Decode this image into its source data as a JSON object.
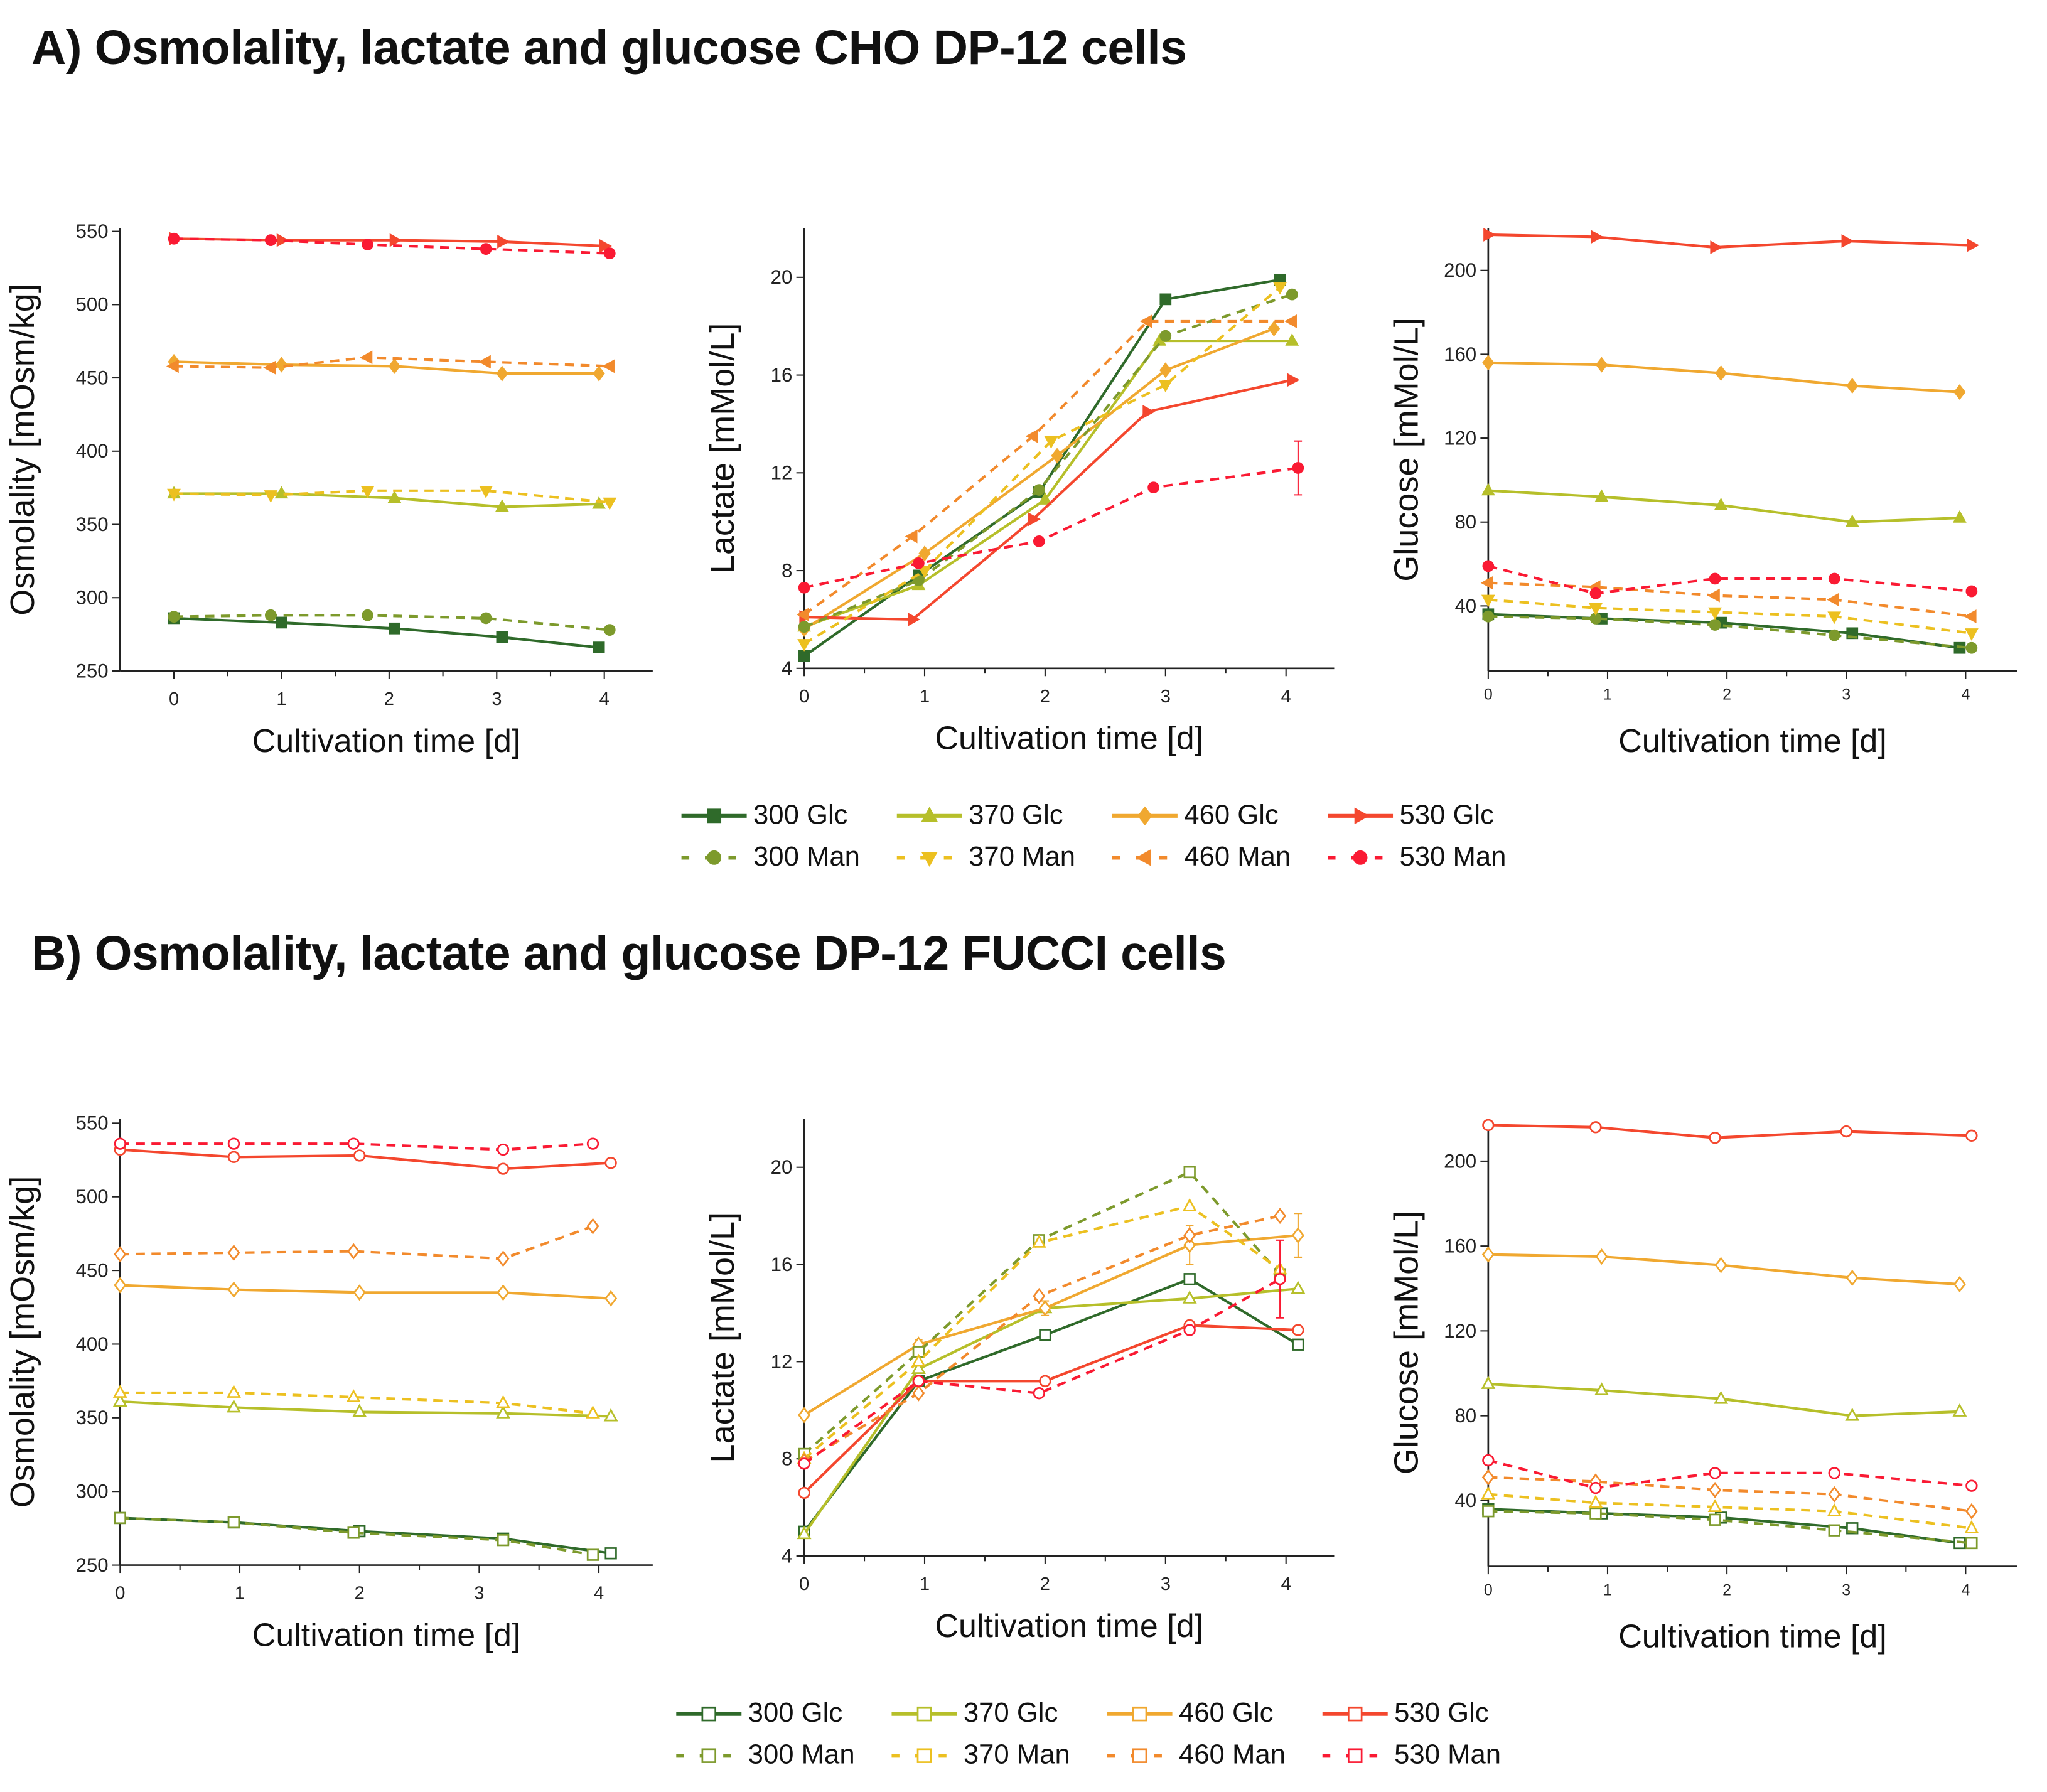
{
  "panel_a_title": "A) Osmolality, lactate and glucose CHO DP-12 cells",
  "panel_b_title": "B) Osmolality, lactate and glucose DP-12 FUCCI  cells",
  "legend_a": [
    {
      "label": "300 Glc",
      "color": "#2f6a2a",
      "dash": false,
      "marker": "square",
      "filled": true
    },
    {
      "label": "370 Glc",
      "color": "#b6bf2a",
      "dash": false,
      "marker": "triangle-up",
      "filled": true
    },
    {
      "label": "460 Glc",
      "color": "#f0a830",
      "dash": false,
      "marker": "diamond",
      "filled": true
    },
    {
      "label": "530 Glc",
      "color": "#f4472e",
      "dash": false,
      "marker": "triangle-right",
      "filled": true
    },
    {
      "label": "300 Man",
      "color": "#7d9a2c",
      "dash": true,
      "marker": "circle",
      "filled": true
    },
    {
      "label": "370 Man",
      "color": "#ecc020",
      "dash": true,
      "marker": "triangle-down",
      "filled": true
    },
    {
      "label": "460 Man",
      "color": "#f28a2c",
      "dash": true,
      "marker": "triangle-left",
      "filled": true
    },
    {
      "label": "530 Man",
      "color": "#fa1a33",
      "dash": true,
      "marker": "circle",
      "filled": true
    }
  ],
  "legend_b": [
    {
      "label": "300 Glc",
      "color": "#2f6a2a",
      "dash": false,
      "marker": "square",
      "filled": false
    },
    {
      "label": "370 Glc",
      "color": "#b6bf2a",
      "dash": false,
      "marker": "square",
      "filled": false
    },
    {
      "label": "460 Glc",
      "color": "#f0a830",
      "dash": false,
      "marker": "square",
      "filled": false
    },
    {
      "label": "530 Glc",
      "color": "#f4472e",
      "dash": false,
      "marker": "square",
      "filled": false
    },
    {
      "label": "300 Man",
      "color": "#7d9a2c",
      "dash": true,
      "marker": "square",
      "filled": false
    },
    {
      "label": "370 Man",
      "color": "#ecc020",
      "dash": true,
      "marker": "square",
      "filled": false
    },
    {
      "label": "460 Man",
      "color": "#f28a2c",
      "dash": true,
      "marker": "square",
      "filled": false
    },
    {
      "label": "530 Man",
      "color": "#fa1a33",
      "dash": true,
      "marker": "square",
      "filled": false
    }
  ],
  "chart_data": [
    {
      "type": "line",
      "panel": "A",
      "xlabel": "Cultivation time [d]",
      "ylabel": "Osmolality [mOsm/kg]",
      "xlim": [
        -0.5,
        4.45
      ],
      "ylim": [
        250,
        552
      ],
      "xticks": [
        0,
        1,
        2,
        3,
        4
      ],
      "yticks": [
        250,
        300,
        350,
        400,
        450,
        500,
        550
      ],
      "grid": false,
      "series": [
        {
          "name": "300 Glc",
          "x": [
            0,
            1,
            2.05,
            3.05,
            3.95
          ],
          "y": [
            286,
            283,
            279,
            273,
            266
          ]
        },
        {
          "name": "370 Glc",
          "x": [
            0,
            1,
            2.05,
            3.05,
            3.95
          ],
          "y": [
            371,
            371,
            368,
            362,
            364
          ]
        },
        {
          "name": "460 Glc",
          "x": [
            0,
            1,
            2.05,
            3.05,
            3.95
          ],
          "y": [
            461,
            459,
            458,
            453,
            453
          ]
        },
        {
          "name": "530 Glc",
          "x": [
            0,
            1,
            2.05,
            3.05,
            4.0
          ],
          "y": [
            545,
            544,
            544,
            543,
            540
          ]
        },
        {
          "name": "300 Man",
          "x": [
            0,
            0.9,
            1.8,
            2.9,
            4.05
          ],
          "y": [
            287,
            288,
            288,
            286,
            278
          ]
        },
        {
          "name": "370 Man",
          "x": [
            0,
            0.9,
            1.8,
            2.9,
            4.05
          ],
          "y": [
            371,
            370,
            373,
            373,
            365
          ]
        },
        {
          "name": "460 Man",
          "x": [
            0,
            0.9,
            1.8,
            2.9,
            4.05
          ],
          "y": [
            458,
            457,
            464,
            461,
            458
          ]
        },
        {
          "name": "530 Man",
          "x": [
            0,
            0.9,
            1.8,
            2.9,
            4.05
          ],
          "y": [
            545,
            544,
            541,
            538,
            535
          ]
        }
      ]
    },
    {
      "type": "line",
      "panel": "A",
      "xlabel": "Cultivation time [d]",
      "ylabel": "Lactate [mMol/L]",
      "xlim": [
        0,
        4.4
      ],
      "ylim": [
        4,
        22
      ],
      "xticks": [
        0,
        1,
        2,
        3,
        4
      ],
      "yticks": [
        4,
        8,
        12,
        16,
        20
      ],
      "grid": false,
      "series": [
        {
          "name": "300 Glc",
          "x": [
            0,
            0.95,
            1.95,
            3.0,
            3.95
          ],
          "y": [
            4.5,
            7.8,
            11.2,
            19.1,
            19.9
          ]
        },
        {
          "name": "370 Glc",
          "x": [
            0,
            0.95,
            2.0,
            2.95,
            4.05
          ],
          "y": [
            5.7,
            7.4,
            10.9,
            17.4,
            17.4
          ]
        },
        {
          "name": "460 Glc",
          "x": [
            0,
            1.0,
            2.1,
            3.0,
            3.9
          ],
          "y": [
            5.6,
            8.7,
            12.7,
            16.2,
            17.9
          ]
        },
        {
          "name": "530 Glc",
          "x": [
            0,
            0.9,
            1.9,
            2.85,
            4.05
          ],
          "y": [
            6.1,
            6.0,
            10.1,
            14.5,
            15.8
          ]
        },
        {
          "name": "300 Man",
          "x": [
            0,
            0.95,
            1.95,
            3.0,
            4.05
          ],
          "y": [
            5.7,
            7.6,
            11.3,
            17.6,
            19.3
          ]
        },
        {
          "name": "370 Man",
          "x": [
            0,
            1.0,
            2.05,
            3.0,
            3.95
          ],
          "y": [
            5.0,
            8.0,
            13.3,
            15.6,
            19.6
          ]
        },
        {
          "name": "460 Man",
          "x": [
            0,
            0.9,
            1.9,
            2.85,
            4.05
          ],
          "y": [
            6.2,
            9.4,
            13.5,
            18.2,
            18.2
          ]
        },
        {
          "name": "530 Man",
          "x": [
            0,
            0.95,
            1.95,
            2.9,
            4.1
          ],
          "y": [
            7.3,
            8.3,
            9.2,
            11.4,
            12.2
          ],
          "err": [
            0,
            0,
            0,
            0,
            1.1
          ]
        }
      ]
    },
    {
      "type": "line",
      "panel": "A",
      "xlabel": "Cultivation time [d]",
      "ylabel": "Glucose [mMol/L]",
      "xlim": [
        0,
        4.43
      ],
      "ylim": [
        9,
        220
      ],
      "xticks": [
        0,
        1,
        2,
        3,
        4
      ],
      "yticks": [
        40,
        80,
        120,
        160,
        200
      ],
      "grid": false,
      "series": [
        {
          "name": "300 Glc",
          "x": [
            0,
            0.95,
            1.95,
            3.05,
            3.95
          ],
          "y": [
            36,
            34,
            32,
            27,
            20
          ]
        },
        {
          "name": "370 Glc",
          "x": [
            0,
            0.95,
            1.95,
            3.05,
            3.95
          ],
          "y": [
            95,
            92,
            88,
            80,
            82
          ]
        },
        {
          "name": "460 Glc",
          "x": [
            0,
            0.95,
            1.95,
            3.05,
            3.95
          ],
          "y": [
            156,
            155,
            151,
            145,
            142
          ]
        },
        {
          "name": "530 Glc",
          "x": [
            0,
            0.9,
            1.9,
            3.0,
            4.05
          ],
          "y": [
            217,
            216,
            211,
            214,
            212
          ]
        },
        {
          "name": "300 Man",
          "x": [
            0,
            0.9,
            1.9,
            2.9,
            4.05
          ],
          "y": [
            35,
            34,
            31,
            26,
            20
          ]
        },
        {
          "name": "370 Man",
          "x": [
            0,
            0.9,
            1.9,
            2.9,
            4.05
          ],
          "y": [
            43,
            39,
            37,
            35,
            27
          ]
        },
        {
          "name": "460 Man",
          "x": [
            0,
            0.9,
            1.9,
            2.9,
            4.05
          ],
          "y": [
            51,
            49,
            45,
            43,
            35
          ]
        },
        {
          "name": "530 Man",
          "x": [
            0,
            0.9,
            1.9,
            2.9,
            4.05
          ],
          "y": [
            59,
            46,
            53,
            53,
            47
          ]
        }
      ]
    },
    {
      "type": "line",
      "panel": "B",
      "xlabel": "Cultivation time [d]",
      "ylabel": "Osmolality [mOsm/kg]",
      "xlim": [
        0,
        4.45
      ],
      "ylim": [
        250,
        553
      ],
      "xticks": [
        0,
        1,
        2,
        3,
        4
      ],
      "yticks": [
        250,
        300,
        350,
        400,
        450,
        500,
        550
      ],
      "grid": false,
      "series": [
        {
          "name": "300 Glc",
          "x": [
            0,
            0.95,
            2.0,
            3.2,
            4.1
          ],
          "y": [
            282,
            279,
            273,
            268,
            258
          ]
        },
        {
          "name": "370 Glc",
          "x": [
            0,
            0.95,
            2.0,
            3.2,
            4.1
          ],
          "y": [
            361,
            357,
            354,
            353,
            351
          ]
        },
        {
          "name": "460 Glc",
          "x": [
            0,
            0.95,
            2.0,
            3.2,
            4.1
          ],
          "y": [
            440,
            437,
            435,
            435,
            431
          ]
        },
        {
          "name": "530 Glc",
          "x": [
            0,
            0.95,
            2.0,
            3.2,
            4.1
          ],
          "y": [
            532,
            527,
            528,
            519,
            523
          ]
        },
        {
          "name": "300 Man",
          "x": [
            0,
            0.95,
            1.95,
            3.2,
            3.95
          ],
          "y": [
            282,
            279,
            272,
            267,
            257
          ]
        },
        {
          "name": "370 Man",
          "x": [
            0,
            0.95,
            1.95,
            3.2,
            3.95
          ],
          "y": [
            367,
            367,
            364,
            360,
            353
          ]
        },
        {
          "name": "460 Man",
          "x": [
            0,
            0.95,
            1.95,
            3.2,
            3.95
          ],
          "y": [
            461,
            462,
            463,
            458,
            480
          ]
        },
        {
          "name": "530 Man",
          "x": [
            0,
            0.95,
            1.95,
            3.2,
            3.95
          ],
          "y": [
            536,
            536,
            536,
            532,
            536
          ]
        }
      ]
    },
    {
      "type": "line",
      "panel": "B",
      "xlabel": "Cultivation time [d]",
      "ylabel": "Lactate [mMol/L]",
      "xlim": [
        0,
        4.4
      ],
      "ylim": [
        4,
        22
      ],
      "xticks": [
        0,
        1,
        2,
        3,
        4
      ],
      "yticks": [
        4,
        8,
        12,
        16,
        20
      ],
      "grid": false,
      "series": [
        {
          "name": "300 Glc",
          "x": [
            0,
            0.95,
            2.0,
            3.2,
            4.1
          ],
          "y": [
            5.0,
            11.2,
            13.1,
            15.4,
            12.7
          ]
        },
        {
          "name": "370 Glc",
          "x": [
            0,
            0.95,
            2.0,
            3.2,
            4.1
          ],
          "y": [
            4.9,
            11.7,
            14.2,
            14.6,
            15.0
          ]
        },
        {
          "name": "460 Glc",
          "x": [
            0,
            0.95,
            2.0,
            3.2,
            4.1
          ],
          "y": [
            9.8,
            12.7,
            14.2,
            16.8,
            17.2
          ],
          "err": [
            0,
            0.2,
            0.3,
            0.8,
            0.9
          ]
        },
        {
          "name": "530 Glc",
          "x": [
            0,
            0.95,
            2.0,
            3.2,
            4.1
          ],
          "y": [
            6.6,
            11.2,
            11.2,
            13.5,
            13.3
          ]
        },
        {
          "name": "300 Man",
          "x": [
            0,
            0.95,
            1.95,
            3.2,
            3.95
          ],
          "y": [
            8.2,
            12.4,
            17.0,
            19.8,
            15.6
          ]
        },
        {
          "name": "370 Man",
          "x": [
            0,
            0.95,
            1.95,
            3.2,
            3.95
          ],
          "y": [
            8.0,
            12.0,
            16.9,
            18.4,
            15.8
          ]
        },
        {
          "name": "460 Man",
          "x": [
            0,
            0.95,
            1.95,
            3.2,
            3.95
          ],
          "y": [
            7.9,
            10.7,
            14.7,
            17.2,
            18.0
          ]
        },
        {
          "name": "530 Man",
          "x": [
            0,
            0.95,
            1.95,
            3.2,
            3.95
          ],
          "y": [
            7.8,
            11.2,
            10.7,
            13.3,
            15.4
          ],
          "err": [
            0,
            0,
            0,
            0,
            1.6
          ]
        }
      ]
    },
    {
      "type": "line",
      "panel": "B",
      "xlabel": "Cultivation time [d]",
      "ylabel": "Glucose [mMol/L]",
      "xlim": [
        0,
        4.43
      ],
      "ylim": [
        9,
        220
      ],
      "xticks": [
        0,
        1,
        2,
        3,
        4
      ],
      "yticks": [
        40,
        80,
        120,
        160,
        200
      ],
      "grid": false,
      "series": [
        {
          "name": "300 Glc",
          "x": [
            0,
            0.95,
            1.95,
            3.05,
            3.95
          ],
          "y": [
            36,
            34,
            32,
            27,
            20
          ]
        },
        {
          "name": "370 Glc",
          "x": [
            0,
            0.95,
            1.95,
            3.05,
            3.95
          ],
          "y": [
            95,
            92,
            88,
            80,
            82
          ]
        },
        {
          "name": "460 Glc",
          "x": [
            0,
            0.95,
            1.95,
            3.05,
            3.95
          ],
          "y": [
            156,
            155,
            151,
            145,
            142
          ]
        },
        {
          "name": "530 Glc",
          "x": [
            0,
            0.9,
            1.9,
            3.0,
            4.05
          ],
          "y": [
            217,
            216,
            211,
            214,
            212
          ]
        },
        {
          "name": "300 Man",
          "x": [
            0,
            0.9,
            1.9,
            2.9,
            4.05
          ],
          "y": [
            35,
            34,
            31,
            26,
            20
          ]
        },
        {
          "name": "370 Man",
          "x": [
            0,
            0.9,
            1.9,
            2.9,
            4.05
          ],
          "y": [
            43,
            39,
            37,
            35,
            27
          ]
        },
        {
          "name": "460 Man",
          "x": [
            0,
            0.9,
            1.9,
            2.9,
            4.05
          ],
          "y": [
            51,
            49,
            45,
            43,
            35
          ]
        },
        {
          "name": "530 Man",
          "x": [
            0,
            0.9,
            1.9,
            2.9,
            4.05
          ],
          "y": [
            59,
            46,
            53,
            53,
            47
          ]
        }
      ]
    }
  ]
}
